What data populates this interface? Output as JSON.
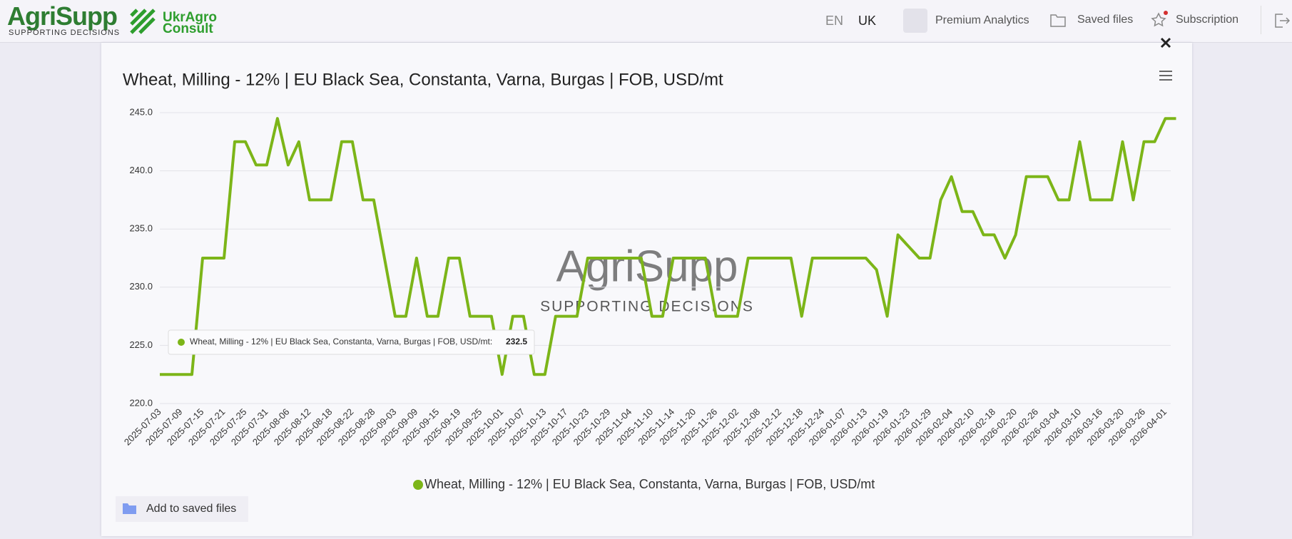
{
  "header": {
    "brand": "AgriSupp",
    "tagline": "SUPPORTING DECISIONS",
    "partner_top": "UkrAgro",
    "partner_bottom": "Consult",
    "languages": [
      "EN",
      "UK"
    ],
    "nav": [
      "Premium Analytics",
      "Saved files",
      "Subscription"
    ]
  },
  "chart_data": {
    "type": "line",
    "title": "Wheat, Milling - 12% | EU Black Sea, Constanta, Varna, Burgas | FOB, USD/mt",
    "categories": [
      "2025-07-03",
      null,
      "2025-07-09",
      null,
      "2025-07-15",
      null,
      "2025-07-21",
      null,
      "2025-07-25",
      null,
      "2025-07-31",
      null,
      "2025-08-06",
      null,
      "2025-08-12",
      null,
      "2025-08-18",
      null,
      "2025-08-22",
      null,
      "2025-08-28",
      null,
      "2025-09-03",
      null,
      "2025-09-09",
      null,
      "2025-09-15",
      null,
      "2025-09-19",
      null,
      "2025-09-25",
      null,
      "2025-10-01",
      null,
      "2025-10-07",
      null,
      "2025-10-13",
      null,
      "2025-10-17",
      null,
      "2025-10-23",
      null,
      "2025-10-29",
      null,
      "2025-11-04",
      null,
      "2025-11-10",
      null,
      "2025-11-14",
      null,
      "2025-11-20",
      null,
      "2025-11-26",
      null,
      "2025-12-02",
      null,
      "2025-12-08",
      null,
      "2025-12-12",
      null,
      "2025-12-18",
      null,
      "2025-12-24",
      null,
      "2026-01-07",
      null,
      "2026-01-13",
      null,
      "2026-01-19",
      null,
      "2026-01-23",
      null,
      "2026-01-29",
      null,
      "2026-02-04",
      null,
      "2026-02-10",
      null,
      "2026-02-18",
      null,
      "2026-02-20",
      null,
      "2026-02-26",
      null,
      "2026-03-04",
      null,
      "2026-03-10",
      null,
      "2026-03-16",
      null,
      "2026-03-20",
      null,
      "2026-03-26",
      null,
      "2026-04-01",
      null
    ],
    "series": [
      {
        "name": "Wheat, Milling - 12% | EU Black Sea, Constanta, Varna, Burgas | FOB, USD/mt",
        "color": "#7cb518",
        "values": [
          222.5,
          222.5,
          222.5,
          222.5,
          232.5,
          232.5,
          232.5,
          242.5,
          242.5,
          240.5,
          240.5,
          244.5,
          240.5,
          242.5,
          237.5,
          237.5,
          237.5,
          242.5,
          242.5,
          237.5,
          237.5,
          232.5,
          227.5,
          227.5,
          232.5,
          227.5,
          227.5,
          232.5,
          232.5,
          227.5,
          227.5,
          227.5,
          222.5,
          227.5,
          227.5,
          222.5,
          222.5,
          227.5,
          227.5,
          227.5,
          232.5,
          232.5,
          232.5,
          232.5,
          232.5,
          232.5,
          227.5,
          227.5,
          232.5,
          232.5,
          232.5,
          232.5,
          227.5,
          227.5,
          227.5,
          232.5,
          232.5,
          232.5,
          232.5,
          232.5,
          227.5,
          232.5,
          232.5,
          232.5,
          232.5,
          232.5,
          232.5,
          231.5,
          227.5,
          234.5,
          233.5,
          232.5,
          232.5,
          237.5,
          239.5,
          236.5,
          236.5,
          234.5,
          234.5,
          232.5,
          234.5,
          239.5,
          239.5,
          239.5,
          237.5,
          237.5,
          242.5,
          237.5,
          237.5,
          237.5,
          242.5,
          237.5,
          242.5,
          242.5,
          244.5,
          244.5
        ]
      }
    ],
    "ylim": [
      220,
      245
    ],
    "yticks": [
      {
        "value": 220,
        "label": "220.0"
      },
      {
        "value": 225,
        "label": "225.0"
      },
      {
        "value": 230,
        "label": "230.0"
      },
      {
        "value": 235,
        "label": "235.0"
      },
      {
        "value": 240,
        "label": "240.0"
      },
      {
        "value": 245,
        "label": "245.0"
      }
    ],
    "grid": true,
    "tooltip": {
      "label": "Wheat, Milling - 12% | EU Black Sea, Constanta, Varna, Burgas | FOB, USD/mt:",
      "value": 232.5
    }
  },
  "watermark": {
    "brand": "AgriSupp",
    "tagline": "SUPPORTING DECISIONS"
  },
  "save_button": "Add to saved files"
}
